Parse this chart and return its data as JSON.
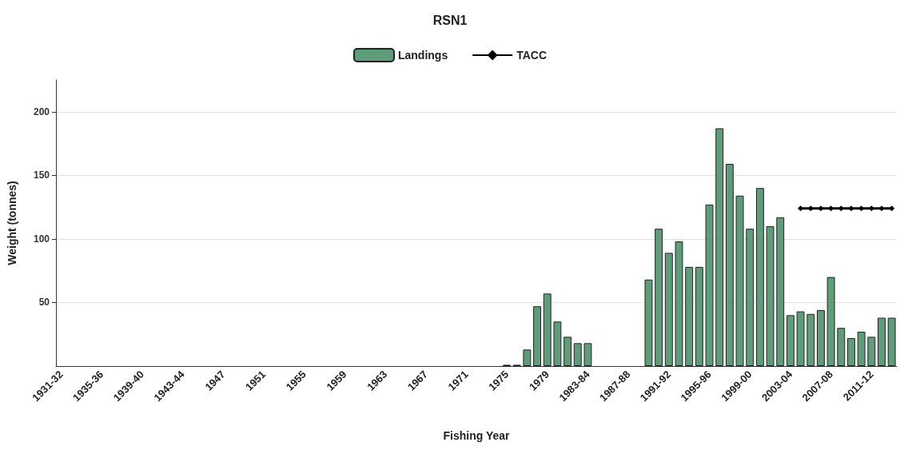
{
  "chart_data": {
    "type": "bar",
    "title": "RSN1",
    "xlabel": "Fishing Year",
    "ylabel": "Weight (tonnes)",
    "categories": [
      "1931-32",
      null,
      null,
      null,
      "1935-36",
      null,
      null,
      null,
      "1939-40",
      null,
      null,
      null,
      "1943-44",
      null,
      null,
      null,
      "1947",
      null,
      null,
      null,
      "1951",
      null,
      null,
      null,
      "1955",
      null,
      null,
      null,
      "1959",
      null,
      null,
      null,
      "1963",
      null,
      null,
      null,
      "1967",
      null,
      null,
      null,
      "1971",
      null,
      null,
      null,
      "1975",
      null,
      null,
      null,
      "1979",
      null,
      null,
      null,
      "1983-84",
      null,
      null,
      null,
      "1987-88",
      null,
      null,
      null,
      "1991-92",
      null,
      null,
      null,
      "1995-96",
      null,
      null,
      null,
      "1999-00",
      null,
      null,
      null,
      "2003-04",
      null,
      null,
      null,
      "2007-08",
      null,
      null,
      null,
      "2011-12",
      null,
      null
    ],
    "series": [
      {
        "name": "Landings",
        "color": "#5e9c7a",
        "values": [
          null,
          null,
          null,
          null,
          null,
          null,
          null,
          null,
          null,
          null,
          null,
          null,
          null,
          null,
          null,
          null,
          null,
          null,
          null,
          null,
          null,
          null,
          null,
          null,
          null,
          null,
          null,
          null,
          null,
          null,
          null,
          null,
          null,
          null,
          null,
          null,
          null,
          null,
          null,
          null,
          null,
          null,
          null,
          null,
          1,
          1,
          13,
          47,
          57,
          35,
          23,
          18,
          18,
          null,
          null,
          null,
          null,
          null,
          68,
          108,
          89,
          98,
          78,
          78,
          127,
          187,
          159,
          134,
          108,
          140,
          110,
          117,
          40,
          43,
          41,
          44,
          70,
          30,
          22,
          27,
          23,
          38,
          38
        ]
      },
      {
        "name": "TACC",
        "type": "line",
        "color": "#000000",
        "marker": "diamond",
        "values": [
          null,
          null,
          null,
          null,
          null,
          null,
          null,
          null,
          null,
          null,
          null,
          null,
          null,
          null,
          null,
          null,
          null,
          null,
          null,
          null,
          null,
          null,
          null,
          null,
          null,
          null,
          null,
          null,
          null,
          null,
          null,
          null,
          null,
          null,
          null,
          null,
          null,
          null,
          null,
          null,
          null,
          null,
          null,
          null,
          null,
          null,
          null,
          null,
          null,
          null,
          null,
          null,
          null,
          null,
          null,
          null,
          null,
          null,
          null,
          null,
          null,
          null,
          null,
          null,
          null,
          null,
          null,
          null,
          null,
          null,
          null,
          null,
          null,
          124,
          124,
          124,
          124,
          124,
          124,
          124,
          124,
          124,
          124
        ]
      }
    ],
    "ylim": [
      0,
      225
    ],
    "yticks": [
      50,
      100,
      150,
      200
    ],
    "grid": "y",
    "legend": "top"
  }
}
